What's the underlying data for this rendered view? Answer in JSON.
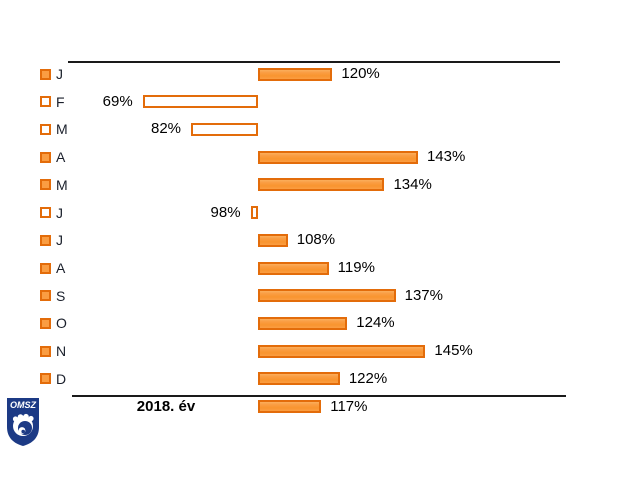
{
  "chart_data": {
    "type": "bar",
    "orientation": "horizontal",
    "title": "",
    "categories": [
      "J",
      "F",
      "M",
      "A",
      "M",
      "J",
      "J",
      "A",
      "S",
      "O",
      "N",
      "D"
    ],
    "values": [
      120,
      69,
      82,
      143,
      134,
      98,
      108,
      119,
      137,
      124,
      145,
      122
    ],
    "value_suffix": "%",
    "baseline": 100,
    "summary": {
      "label": "2018. év",
      "value": 117
    },
    "layout_hints": {
      "below_baseline_style": "outline-bar-extending-left",
      "above_baseline_style": "filled-bar-extending-right",
      "grid": false,
      "legend": false,
      "axis_rules": "horizontal rule above months and above summary row"
    },
    "colors": {
      "bar_fill": "#FA9D42",
      "bar_border": "#E36C0A",
      "axis_line": "#1a1a1a",
      "text": "#000000",
      "logo_blue": "#1C3A85"
    }
  },
  "logo": {
    "text": "OMSZ"
  }
}
